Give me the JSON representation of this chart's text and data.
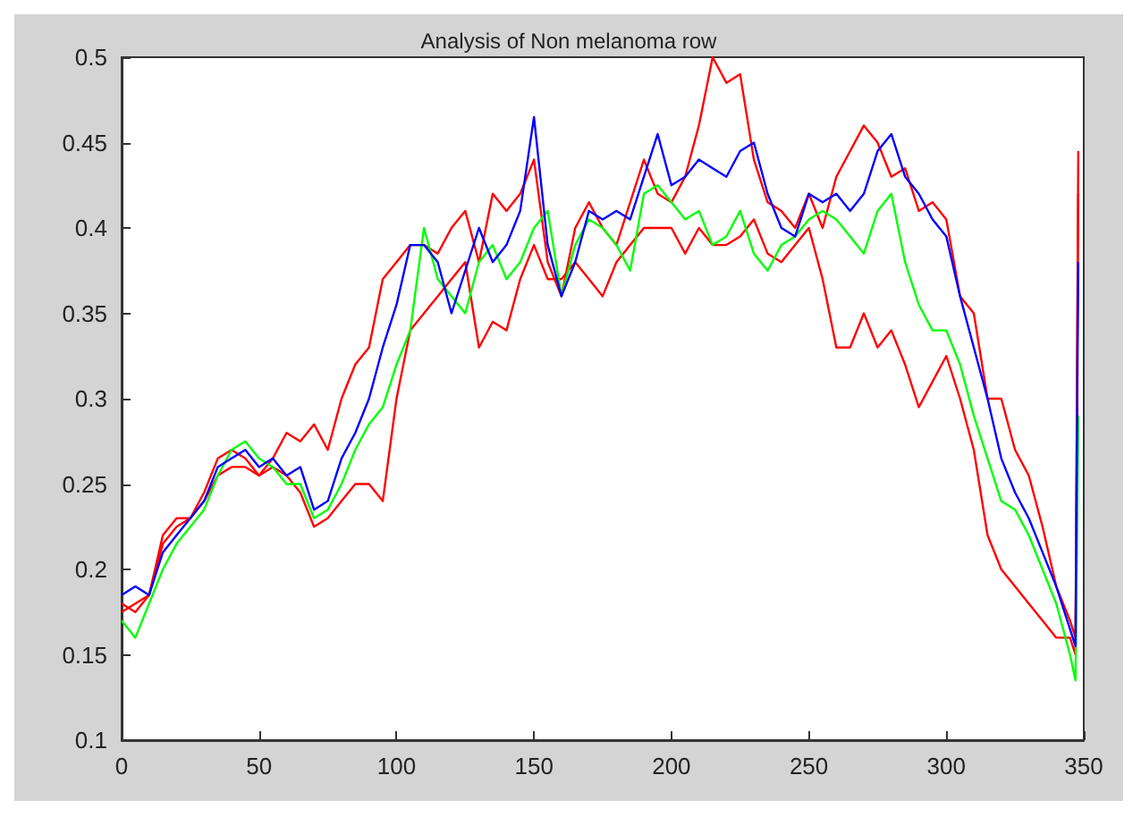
{
  "chart_data": {
    "type": "line",
    "title": "Analysis of Non melanoma row",
    "x": [
      0,
      5,
      10,
      15,
      20,
      25,
      30,
      35,
      40,
      45,
      50,
      55,
      60,
      65,
      70,
      75,
      80,
      85,
      90,
      95,
      100,
      105,
      110,
      115,
      120,
      125,
      130,
      135,
      140,
      145,
      150,
      155,
      160,
      165,
      170,
      175,
      180,
      185,
      190,
      195,
      200,
      205,
      210,
      215,
      220,
      225,
      230,
      235,
      240,
      245,
      250,
      255,
      260,
      265,
      270,
      275,
      280,
      285,
      290,
      295,
      300,
      305,
      310,
      315,
      320,
      325,
      330,
      335,
      340,
      345,
      347,
      348
    ],
    "series": [
      {
        "color": "#ff0000",
        "values": [
          0.18,
          0.175,
          0.185,
          0.22,
          0.23,
          0.23,
          0.245,
          0.265,
          0.27,
          0.265,
          0.255,
          0.265,
          0.28,
          0.275,
          0.285,
          0.27,
          0.3,
          0.32,
          0.33,
          0.37,
          0.38,
          0.39,
          0.39,
          0.385,
          0.4,
          0.41,
          0.38,
          0.42,
          0.41,
          0.42,
          0.44,
          0.38,
          0.36,
          0.4,
          0.415,
          0.4,
          0.39,
          0.415,
          0.44,
          0.42,
          0.415,
          0.43,
          0.46,
          0.5,
          0.485,
          0.49,
          0.44,
          0.415,
          0.41,
          0.4,
          0.42,
          0.4,
          0.43,
          0.445,
          0.46,
          0.45,
          0.43,
          0.435,
          0.41,
          0.415,
          0.405,
          0.36,
          0.35,
          0.3,
          0.3,
          0.27,
          0.255,
          0.225,
          0.19,
          0.17,
          0.16,
          0.445
        ]
      },
      {
        "color": "#ff0000",
        "values": [
          0.175,
          0.18,
          0.185,
          0.215,
          0.225,
          0.23,
          0.24,
          0.255,
          0.26,
          0.26,
          0.255,
          0.26,
          0.255,
          0.245,
          0.225,
          0.23,
          0.24,
          0.25,
          0.25,
          0.24,
          0.3,
          0.34,
          0.35,
          0.36,
          0.37,
          0.38,
          0.33,
          0.345,
          0.34,
          0.37,
          0.39,
          0.37,
          0.37,
          0.38,
          0.37,
          0.36,
          0.38,
          0.39,
          0.4,
          0.4,
          0.4,
          0.385,
          0.4,
          0.39,
          0.39,
          0.395,
          0.405,
          0.385,
          0.38,
          0.39,
          0.4,
          0.37,
          0.33,
          0.33,
          0.35,
          0.33,
          0.34,
          0.32,
          0.295,
          0.31,
          0.325,
          0.3,
          0.27,
          0.22,
          0.2,
          0.19,
          0.18,
          0.17,
          0.16,
          0.16,
          0.15,
          0.42
        ]
      },
      {
        "color": "#00ff00",
        "values": [
          0.17,
          0.16,
          0.18,
          0.2,
          0.215,
          0.225,
          0.235,
          0.255,
          0.27,
          0.275,
          0.265,
          0.26,
          0.25,
          0.25,
          0.23,
          0.235,
          0.25,
          0.27,
          0.285,
          0.295,
          0.32,
          0.34,
          0.4,
          0.37,
          0.36,
          0.35,
          0.38,
          0.39,
          0.37,
          0.38,
          0.4,
          0.41,
          0.36,
          0.39,
          0.405,
          0.4,
          0.39,
          0.375,
          0.42,
          0.425,
          0.415,
          0.405,
          0.41,
          0.39,
          0.395,
          0.41,
          0.385,
          0.375,
          0.39,
          0.395,
          0.405,
          0.41,
          0.405,
          0.395,
          0.385,
          0.41,
          0.42,
          0.38,
          0.355,
          0.34,
          0.34,
          0.32,
          0.29,
          0.265,
          0.24,
          0.235,
          0.22,
          0.2,
          0.18,
          0.15,
          0.135,
          0.29
        ]
      },
      {
        "color": "#0000ff",
        "values": [
          0.185,
          0.19,
          0.185,
          0.21,
          0.22,
          0.23,
          0.24,
          0.26,
          0.265,
          0.27,
          0.26,
          0.265,
          0.255,
          0.26,
          0.235,
          0.24,
          0.265,
          0.28,
          0.3,
          0.33,
          0.355,
          0.39,
          0.39,
          0.38,
          0.35,
          0.375,
          0.4,
          0.38,
          0.39,
          0.41,
          0.465,
          0.39,
          0.36,
          0.38,
          0.41,
          0.405,
          0.41,
          0.405,
          0.43,
          0.455,
          0.425,
          0.43,
          0.44,
          0.435,
          0.43,
          0.445,
          0.45,
          0.42,
          0.4,
          0.395,
          0.42,
          0.415,
          0.42,
          0.41,
          0.42,
          0.445,
          0.455,
          0.43,
          0.42,
          0.405,
          0.395,
          0.36,
          0.33,
          0.3,
          0.265,
          0.245,
          0.23,
          0.21,
          0.19,
          0.165,
          0.155,
          0.38
        ]
      }
    ],
    "xlim": [
      0,
      350
    ],
    "xticks": [
      0,
      50,
      100,
      150,
      200,
      250,
      300,
      350
    ],
    "ylim": [
      0.1,
      0.5
    ],
    "yticks": [
      0.1,
      0.15,
      0.2,
      0.25,
      0.3,
      0.35,
      0.4,
      0.45,
      0.5
    ],
    "grid": false
  }
}
